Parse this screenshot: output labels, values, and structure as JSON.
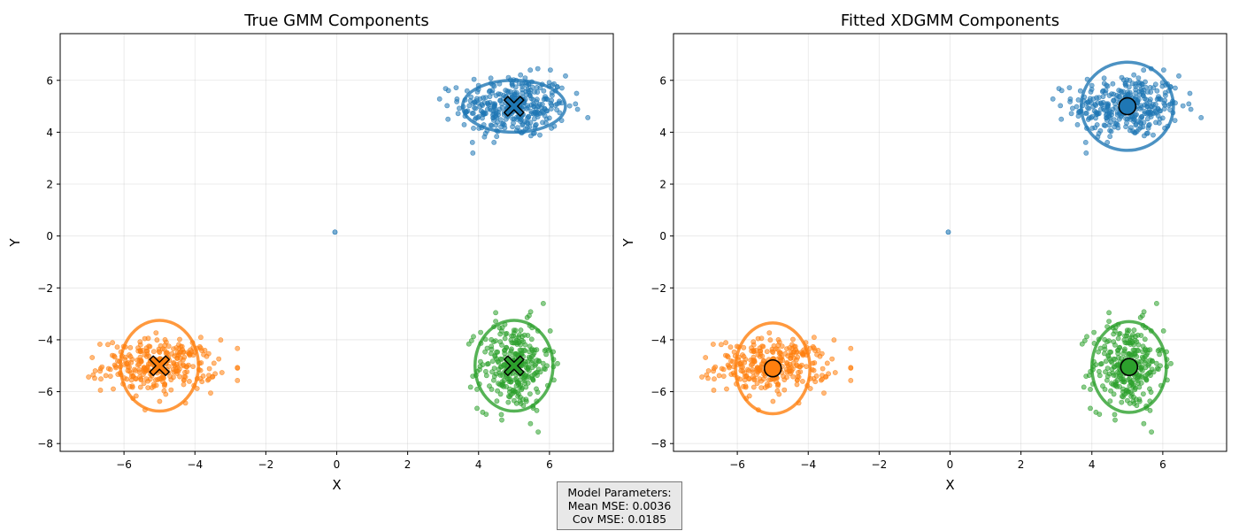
{
  "chart_data": [
    {
      "type": "scatter",
      "title": "True GMM Components",
      "xlabel": "X",
      "ylabel": "Y",
      "xlim": [
        -7.8,
        7.8
      ],
      "ylim": [
        -8.3,
        7.8
      ],
      "xticks": [
        -6,
        -4,
        -2,
        0,
        2,
        4,
        6
      ],
      "yticks": [
        -8,
        -6,
        -4,
        -2,
        0,
        2,
        4,
        6
      ],
      "grid": true,
      "series": [
        {
          "color": "#1f77b4",
          "mean": [
            5,
            5
          ],
          "ellipse_radii": [
            1.45,
            1.0
          ],
          "marker": "X",
          "n_points": 350,
          "spread": [
            0.75,
            0.6
          ],
          "x_range": [
            2.9,
            7.1
          ],
          "y_range": [
            3.2,
            7.0
          ]
        },
        {
          "color": "#ff7f0e",
          "mean": [
            -5,
            -5
          ],
          "ellipse_radii": [
            1.1,
            1.75
          ],
          "marker": "X",
          "n_points": 300,
          "spread": [
            0.8,
            0.5
          ],
          "x_range": [
            -7.0,
            -2.8
          ],
          "y_range": [
            -6.7,
            -3.2
          ]
        },
        {
          "color": "#2ca02c",
          "mean": [
            5,
            -5
          ],
          "ellipse_radii": [
            1.1,
            1.75
          ],
          "marker": "X",
          "n_points": 300,
          "spread": [
            0.5,
            0.85
          ],
          "x_range": [
            3.4,
            6.5
          ],
          "y_range": [
            -7.6,
            -2.6
          ]
        }
      ],
      "outlier": [
        -0.05,
        0.15
      ]
    },
    {
      "type": "scatter",
      "title": "Fitted XDGMM Components",
      "xlabel": "X",
      "ylabel": "Y",
      "xlim": [
        -7.8,
        7.8
      ],
      "ylim": [
        -8.3,
        7.8
      ],
      "xticks": [
        -6,
        -4,
        -2,
        0,
        2,
        4,
        6
      ],
      "yticks": [
        -8,
        -6,
        -4,
        -2,
        0,
        2,
        4,
        6
      ],
      "grid": true,
      "series": [
        {
          "color": "#1f77b4",
          "mean": [
            5,
            5
          ],
          "ellipse_radii": [
            1.3,
            1.7
          ],
          "marker": "o",
          "n_points": 350,
          "spread": [
            0.75,
            0.6
          ],
          "x_range": [
            2.9,
            7.1
          ],
          "y_range": [
            3.2,
            7.0
          ]
        },
        {
          "color": "#ff7f0e",
          "mean": [
            -5,
            -5.1
          ],
          "ellipse_radii": [
            1.05,
            1.75
          ],
          "marker": "o",
          "n_points": 300,
          "spread": [
            0.8,
            0.5
          ],
          "x_range": [
            -7.0,
            -2.8
          ],
          "y_range": [
            -6.7,
            -3.2
          ]
        },
        {
          "color": "#2ca02c",
          "mean": [
            5.05,
            -5.05
          ],
          "ellipse_radii": [
            1.05,
            1.75
          ],
          "marker": "o",
          "n_points": 300,
          "spread": [
            0.5,
            0.85
          ],
          "x_range": [
            3.4,
            6.5
          ],
          "y_range": [
            -7.6,
            -2.6
          ]
        }
      ],
      "outlier": [
        -0.05,
        0.15
      ]
    }
  ],
  "params_box": {
    "line1": "Model Parameters:",
    "line2": "Mean MSE: 0.0036",
    "line3": "Cov MSE: 0.0185"
  }
}
